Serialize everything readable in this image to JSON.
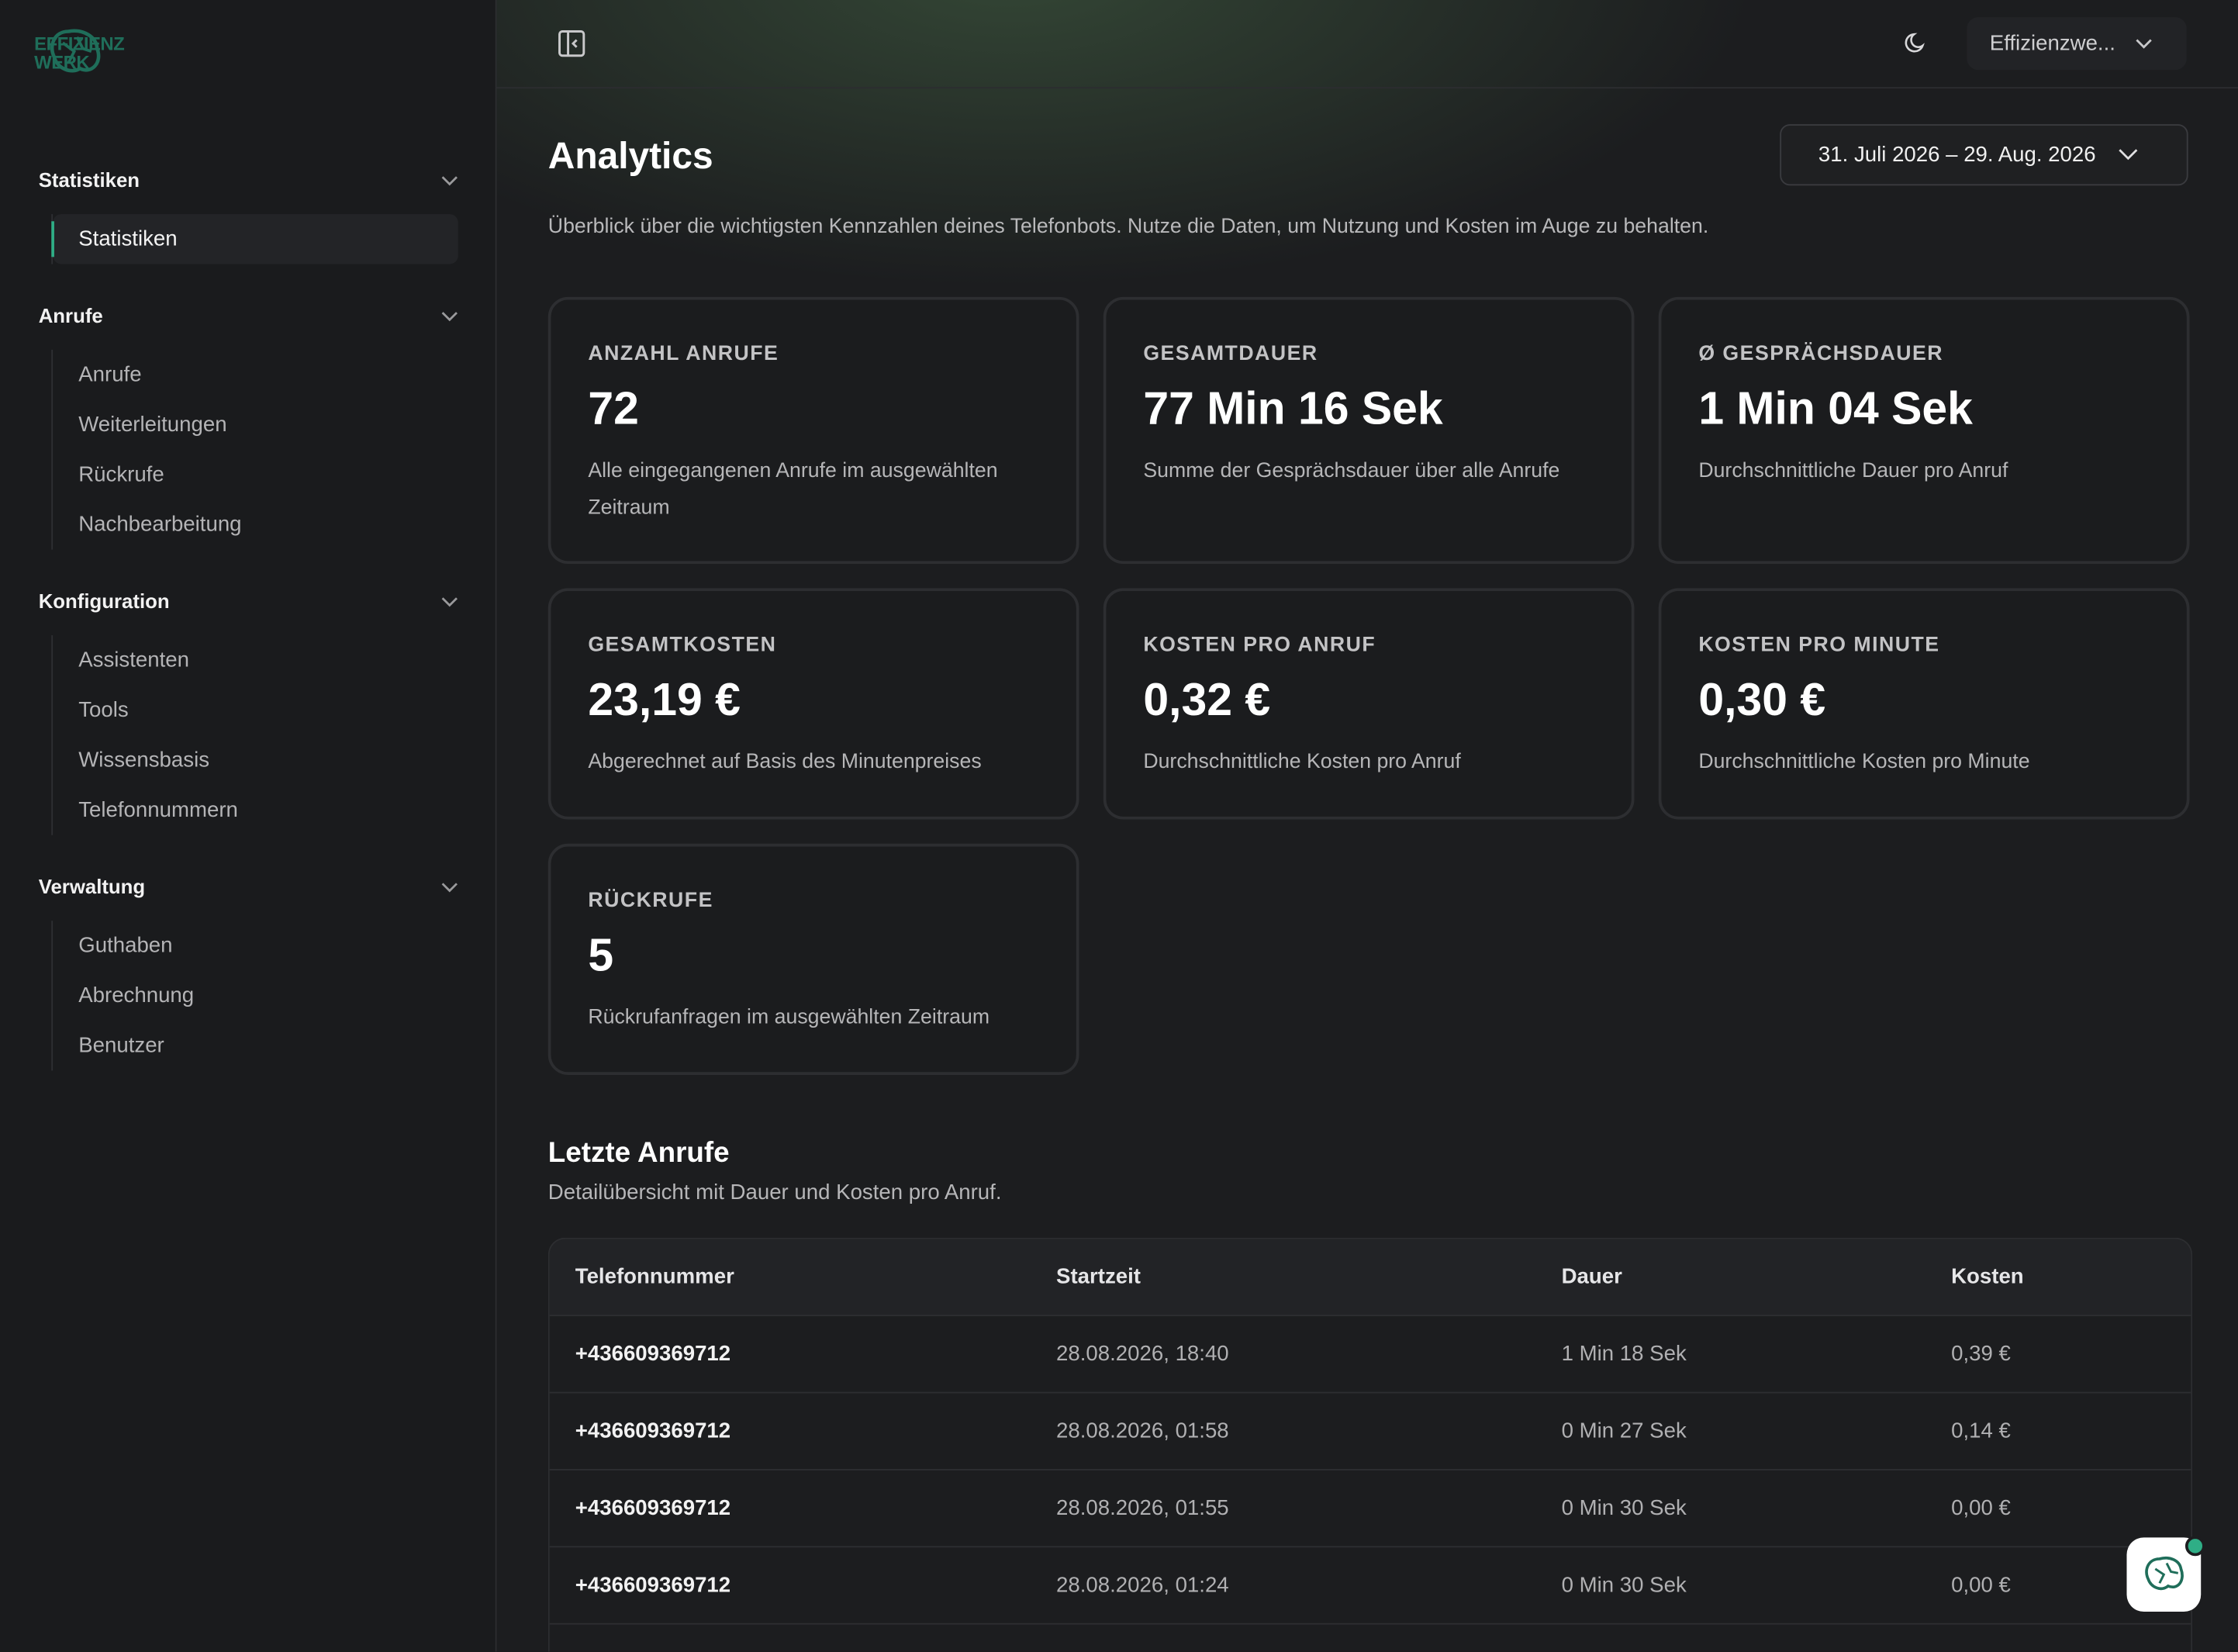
{
  "sidebar": {
    "logo": [
      "EFFIZIENZ",
      "WERK"
    ],
    "sections": [
      {
        "title": "Statistiken",
        "items": [
          "Statistiken"
        ]
      },
      {
        "title": "Anrufe",
        "items": [
          "Anrufe",
          "Weiterleitungen",
          "Rückrufe",
          "Nachbearbeitung"
        ]
      },
      {
        "title": "Konfiguration",
        "items": [
          "Assistenten",
          "Tools",
          "Wissensbasis",
          "Telefonnummern"
        ]
      },
      {
        "title": "Verwaltung",
        "items": [
          "Guthaben",
          "Abrechnung",
          "Benutzer"
        ]
      }
    ]
  },
  "header": {
    "account": "Effizienzwe..."
  },
  "page": {
    "title": "Analytics",
    "date_range": "31. Juli 2026 – 29. Aug. 2026",
    "description": "Überblick über die wichtigsten Kennzahlen deines Telefonbots. Nutze die Daten, um Nutzung und Kosten im Auge zu behalten.",
    "cards": [
      {
        "label": "ANZAHL ANRUFE",
        "value": "72",
        "description": "Alle eingegangenen Anrufe im ausgewählten Zeitraum"
      },
      {
        "label": "GESAMTDAUER",
        "value": "77 Min 16 Sek",
        "description": "Summe der Gesprächsdauer über alle Anrufe"
      },
      {
        "label": "Ø GESPRÄCHSDAUER",
        "value": "1 Min 04 Sek",
        "description": "Durchschnittliche Dauer pro Anruf"
      },
      {
        "label": "GESAMTKOSTEN",
        "value": "23,19 €",
        "description": "Abgerechnet auf Basis des Minutenpreises"
      },
      {
        "label": "KOSTEN PRO ANRUF",
        "value": "0,32 €",
        "description": "Durchschnittliche Kosten pro Anruf"
      },
      {
        "label": "KOSTEN PRO MINUTE",
        "value": "0,30 €",
        "description": "Durchschnittliche Kosten pro Minute"
      },
      {
        "label": "RÜCKRUFE",
        "value": "5",
        "description": "Rückrufanfragen im ausgewählten Zeitraum"
      }
    ],
    "table": {
      "title": "Letzte Anrufe",
      "subtitle": "Detailübersicht mit Dauer und Kosten pro Anruf.",
      "columns": [
        "Telefonnummer",
        "Startzeit",
        "Dauer",
        "Kosten"
      ],
      "rows": [
        [
          "+436609369712",
          "28.08.2026, 18:40",
          "1 Min 18 Sek",
          "0,39 €"
        ],
        [
          "+436609369712",
          "28.08.2026, 01:58",
          "0 Min 27 Sek",
          "0,14 €"
        ],
        [
          "+436609369712",
          "28.08.2026, 01:55",
          "0 Min 30 Sek",
          "0,00 €"
        ],
        [
          "+436609369712",
          "28.08.2026, 01:24",
          "0 Min 30 Sek",
          "0,00 €"
        ]
      ]
    }
  }
}
